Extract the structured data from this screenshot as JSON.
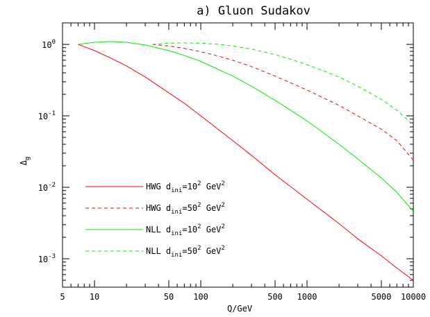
{
  "chart_data": {
    "type": "line",
    "title": "a) Gluon Sudakov",
    "xlabel": "Q/GeV",
    "ylabel": "Δg",
    "xscale": "log",
    "yscale": "log",
    "xlim": [
      5,
      10000
    ],
    "ylim": [
      0.0004,
      2
    ],
    "grid": false,
    "legend_position": "lower-left",
    "x_tick_labels": [
      "5",
      "10",
      "50",
      "100",
      "500",
      "1000",
      "5000",
      "10000"
    ],
    "x_ticks": [
      5,
      10,
      50,
      100,
      500,
      1000,
      5000,
      10000
    ],
    "y_ticks": [
      {
        "value": 1,
        "base": "10",
        "exp": "0"
      },
      {
        "value": 0.1,
        "base": "10",
        "exp": "-1"
      },
      {
        "value": 0.01,
        "base": "10",
        "exp": "-2"
      },
      {
        "value": 0.001,
        "base": "10",
        "exp": "-3"
      }
    ],
    "series": [
      {
        "name": "HWG dini=10² GeV²",
        "legend": {
          "pre": "HWG d",
          "sub": "ini",
          "mid": "=10",
          "sup1": "2",
          "post": " GeV",
          "sup2": "2"
        },
        "color": "#ff0000",
        "dash": "solid",
        "x": [
          7,
          10,
          15,
          20,
          30,
          50,
          70,
          100,
          200,
          300,
          500,
          1000,
          2000,
          3000,
          5000,
          7000,
          10000
        ],
        "y": [
          1.0,
          0.82,
          0.62,
          0.5,
          0.35,
          0.21,
          0.15,
          0.1,
          0.045,
          0.028,
          0.015,
          0.0068,
          0.0031,
          0.0019,
          0.0011,
          0.00074,
          0.0005
        ]
      },
      {
        "name": "HWG dini=50² GeV²",
        "legend": {
          "pre": "HWG d",
          "sub": "ini",
          "mid": "=50",
          "sup1": "2",
          "post": " GeV",
          "sup2": "2"
        },
        "color": "#ff0000",
        "dash": "dashed",
        "x": [
          35,
          50,
          70,
          100,
          150,
          200,
          300,
          500,
          700,
          1000,
          2000,
          3000,
          5000,
          7000,
          10000
        ],
        "y": [
          1.0,
          0.95,
          0.88,
          0.79,
          0.68,
          0.6,
          0.49,
          0.36,
          0.29,
          0.23,
          0.14,
          0.1,
          0.065,
          0.045,
          0.024
        ]
      },
      {
        "name": "NLL dini=10² GeV²",
        "legend": {
          "pre": "NLL d",
          "sub": "ini",
          "mid": "=10",
          "sup1": "2",
          "post": " GeV",
          "sup2": "2"
        },
        "color": "#00ee00",
        "dash": "solid",
        "x": [
          7,
          10,
          14,
          20,
          30,
          50,
          70,
          100,
          200,
          300,
          500,
          1000,
          2000,
          3000,
          5000,
          7000,
          10000
        ],
        "y": [
          1.0,
          1.07,
          1.1,
          1.07,
          0.98,
          0.82,
          0.7,
          0.58,
          0.36,
          0.26,
          0.165,
          0.085,
          0.04,
          0.025,
          0.0135,
          0.0085,
          0.0046
        ]
      },
      {
        "name": "NLL dini=50² GeV²",
        "legend": {
          "pre": "NLL d",
          "sub": "ini",
          "mid": "=50",
          "sup1": "2",
          "post": " GeV",
          "sup2": "2"
        },
        "color": "#00ee00",
        "dash": "dashed",
        "x": [
          35,
          50,
          70,
          100,
          150,
          200,
          300,
          500,
          700,
          1000,
          2000,
          3000,
          5000,
          7000,
          10000
        ],
        "y": [
          1.0,
          1.04,
          1.05,
          1.04,
          1.0,
          0.95,
          0.86,
          0.72,
          0.62,
          0.52,
          0.35,
          0.26,
          0.17,
          0.12,
          0.075
        ]
      }
    ]
  }
}
